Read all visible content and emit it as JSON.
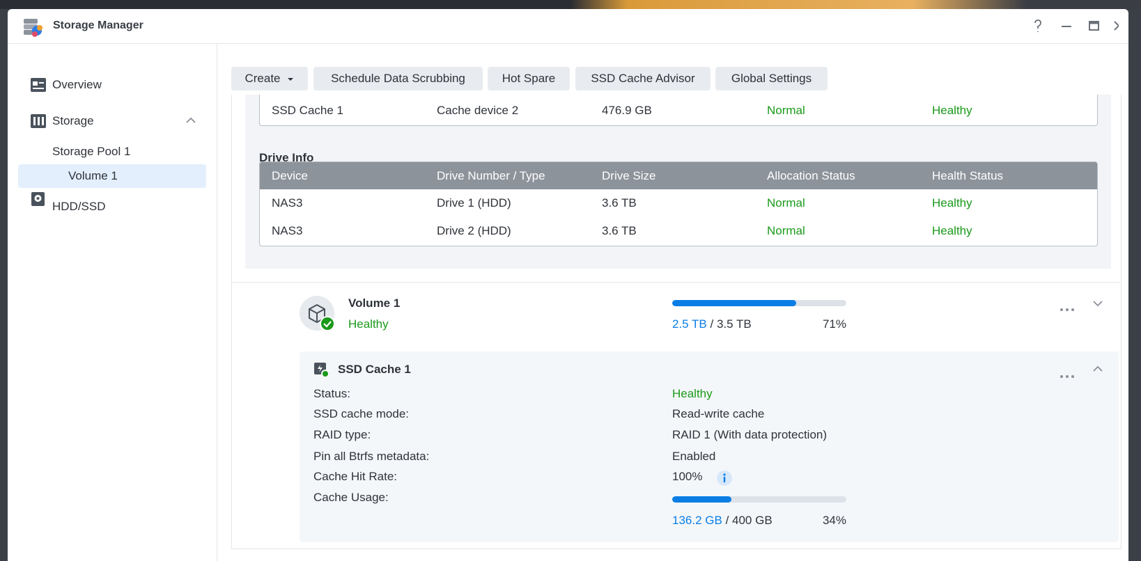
{
  "window": {
    "title": "Storage Manager"
  },
  "sidebar": {
    "items": [
      "Overview",
      "Storage",
      "Storage Pool 1",
      "Volume 1",
      "HDD/SSD"
    ]
  },
  "toolbar": {
    "buttons": [
      "Create",
      "Schedule Data Scrubbing",
      "Hot Spare",
      "SSD Cache Advisor",
      "Global Settings"
    ]
  },
  "cache_table": {
    "rows": [
      [
        "SSD Cache 1",
        "Cache device 2",
        "476.9 GB",
        "Normal",
        "Healthy"
      ]
    ]
  },
  "drive_info": {
    "title": "Drive Info",
    "headers": [
      "Device",
      "Drive Number / Type",
      "Drive Size",
      "Allocation Status",
      "Health Status"
    ],
    "rows": [
      [
        "NAS3",
        "Drive 1 (HDD)",
        "3.6 TB",
        "Normal",
        "Healthy"
      ],
      [
        "NAS3",
        "Drive 2 (HDD)",
        "3.6 TB",
        "Normal",
        "Healthy"
      ]
    ]
  },
  "volume": {
    "name": "Volume 1",
    "status": "Healthy",
    "used": "2.5 TB",
    "total": "/ 3.5 TB",
    "percent": "71%"
  },
  "ssd_cache": {
    "title": "SSD Cache 1",
    "fields": [
      {
        "label": "Status:",
        "value": "Healthy"
      },
      {
        "label": "SSD cache mode:",
        "value": "Read-write cache"
      },
      {
        "label": "RAID type:",
        "value": "RAID 1 (With data protection)"
      },
      {
        "label": "Pin all Btrfs metadata:",
        "value": "Enabled"
      },
      {
        "label": "Cache Hit Rate:",
        "value": "100%"
      },
      {
        "label": "Cache Usage:",
        "value": ""
      }
    ],
    "usage": {
      "used": "136.2 GB",
      "total": "/ 400 GB",
      "percent": "34%"
    }
  }
}
